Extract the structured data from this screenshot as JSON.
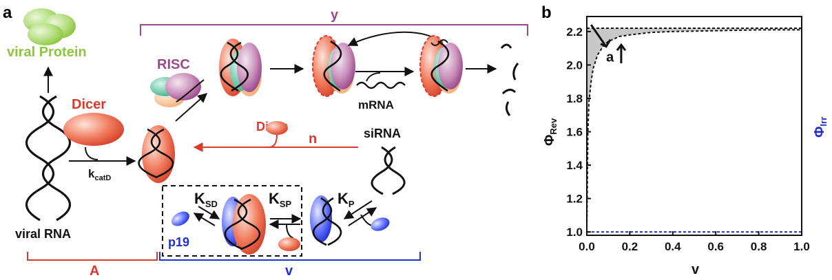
{
  "panel_a": {
    "label": "a",
    "viral_protein": "viral Protein",
    "viral_rna": "viral RNA",
    "dicer_top": "Dicer",
    "kcat": "k",
    "kcat_sub": "catD",
    "risc": "RISC",
    "mrna": "mRNA",
    "dicer_mid": "Dicer",
    "n": "n",
    "sirna": "siRNA",
    "y": "y",
    "ksd": "K",
    "ksd_sub": "SD",
    "ksp": "K",
    "ksp_sub": "SP",
    "kp": "K",
    "kp_sub": "P",
    "p19": "p19",
    "A": "A",
    "v": "v",
    "colors": {
      "dicer_red": "#d93a2b",
      "p19_blue": "#1f2fd0",
      "y_purple": "#9a4a8a",
      "green": "#8cc63f"
    }
  },
  "panel_b": {
    "label": "b",
    "annotation": "a",
    "xlabel": "v",
    "ylabel_rev": "Φ",
    "ylabel_rev_sub": "Rev",
    "ylabel_irr": "Φ",
    "ylabel_irr_sub": "Irr",
    "chart_data": {
      "type": "line",
      "xlim": [
        0.0,
        1.0
      ],
      "ylim": [
        0.98,
        2.29
      ],
      "xticks": [
        "0.0",
        "0.2",
        "0.4",
        "0.6",
        "0.8",
        "1.0"
      ],
      "yticks": [
        "1.0",
        "1.2",
        "1.4",
        "1.6",
        "1.8",
        "2.0",
        "2.2"
      ],
      "series": [
        {
          "x": [
            0.0,
            0.02,
            0.05,
            0.1,
            0.2,
            0.4,
            0.6,
            0.8,
            1.0
          ],
          "y": [
            2.22,
            2.22,
            2.22,
            2.22,
            2.22,
            2.22,
            2.22,
            2.22,
            2.22
          ]
        },
        {
          "x": [
            0.0,
            0.005,
            0.01,
            0.02,
            0.03,
            0.05,
            0.08,
            0.1,
            0.15,
            0.2,
            0.3,
            0.4,
            0.6,
            0.8,
            1.0
          ],
          "y": [
            1.0,
            1.6,
            1.78,
            1.9,
            1.98,
            2.06,
            2.12,
            2.14,
            2.17,
            2.18,
            2.195,
            2.2,
            2.205,
            2.21,
            2.21
          ]
        },
        {
          "x": [
            0.0,
            1.0
          ],
          "y": [
            1.0,
            1.0
          ],
          "color": "#1f2fd0"
        }
      ],
      "grid": false
    }
  }
}
